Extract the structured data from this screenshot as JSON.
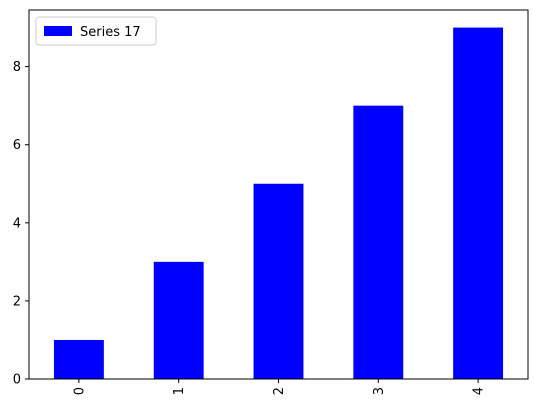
{
  "chart_data": {
    "type": "bar",
    "categories": [
      "0",
      "1",
      "2",
      "3",
      "4"
    ],
    "series": [
      {
        "name": "Series 17",
        "values": [
          1,
          3,
          5,
          7,
          9
        ],
        "color": "#0000ff"
      }
    ],
    "title": "",
    "xlabel": "",
    "ylabel": "",
    "ylim": [
      0,
      9.45
    ],
    "yticks": [
      0,
      2,
      4,
      6,
      8
    ],
    "grid": false,
    "legend": {
      "placement": "top-left"
    },
    "x_tick_rotation": "vertical"
  }
}
